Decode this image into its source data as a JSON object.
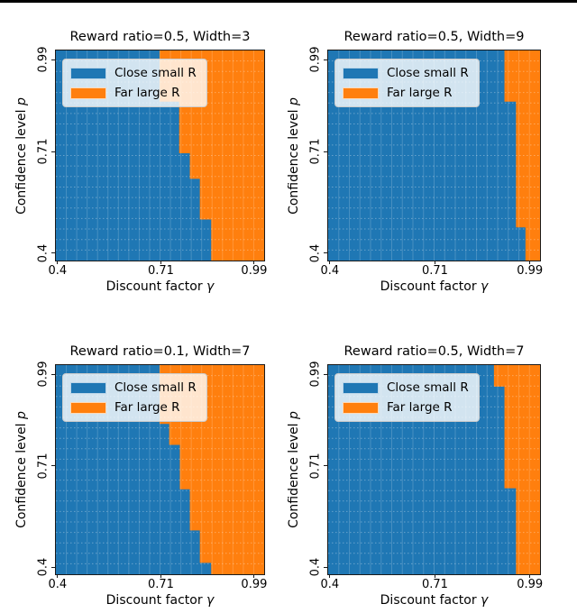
{
  "page": {
    "background": "#ffffff",
    "top_bar_color": "#000000"
  },
  "chart_data": {
    "type": "heatmap",
    "x_axis": {
      "label_prefix": "Discount factor ",
      "label_var": "γ",
      "range": [
        0.395,
        1.02
      ],
      "ticks": [
        {
          "value": 0.4,
          "label": "0.4"
        },
        {
          "value": 0.71,
          "label": "0.71"
        },
        {
          "value": 0.99,
          "label": "0.99"
        }
      ]
    },
    "y_axis": {
      "label_prefix": "Confidence level ",
      "label_var": "p",
      "range": [
        0.378,
        1.018
      ],
      "ticks": [
        {
          "value": 0.99,
          "label": "0.99"
        },
        {
          "value": 0.71,
          "label": "0.71"
        },
        {
          "value": 0.4,
          "label": "0.4"
        }
      ]
    },
    "legend": {
      "position": "upper left",
      "entries": [
        {
          "label": "Close small R",
          "color": "#1f77b4",
          "side": "left region"
        },
        {
          "label": "Far large R",
          "color": "#ff7f0e",
          "side": "right region"
        }
      ]
    },
    "grid": {
      "divisions": 20,
      "color": "#ffffff"
    },
    "subplots": [
      {
        "title": "Reward ratio=0.5, Width=3",
        "reward_ratio": 0.5,
        "width": 3,
        "boundary_steps": [
          {
            "gamma": 0.706,
            "p_down_to": 0.862
          },
          {
            "gamma": 0.765,
            "p_down_to": 0.705
          },
          {
            "gamma": 0.797,
            "p_down_to": 0.627
          },
          {
            "gamma": 0.827,
            "p_down_to": 0.503
          },
          {
            "gamma": 0.861,
            "p_down_to": 0.378
          }
        ]
      },
      {
        "title": "Reward ratio=0.5, Width=9",
        "reward_ratio": 0.5,
        "width": 9,
        "boundary_steps": [
          {
            "gamma": 0.915,
            "p_down_to": 0.862
          },
          {
            "gamma": 0.949,
            "p_down_to": 0.479
          },
          {
            "gamma": 0.977,
            "p_down_to": 0.378
          }
        ]
      },
      {
        "title": "Reward ratio=0.1, Width=7",
        "reward_ratio": 0.1,
        "width": 7,
        "boundary_steps": [
          {
            "gamma": 0.706,
            "p_down_to": 0.838
          },
          {
            "gamma": 0.735,
            "p_down_to": 0.774
          },
          {
            "gamma": 0.767,
            "p_down_to": 0.638
          },
          {
            "gamma": 0.797,
            "p_down_to": 0.512
          },
          {
            "gamma": 0.827,
            "p_down_to": 0.413
          },
          {
            "gamma": 0.861,
            "p_down_to": 0.378
          }
        ]
      },
      {
        "title": "Reward ratio=0.5, Width=7",
        "reward_ratio": 0.5,
        "width": 7,
        "boundary_steps": [
          {
            "gamma": 0.884,
            "p_down_to": 0.952
          },
          {
            "gamma": 0.915,
            "p_down_to": 0.641
          },
          {
            "gamma": 0.949,
            "p_down_to": 0.378
          }
        ]
      }
    ]
  }
}
